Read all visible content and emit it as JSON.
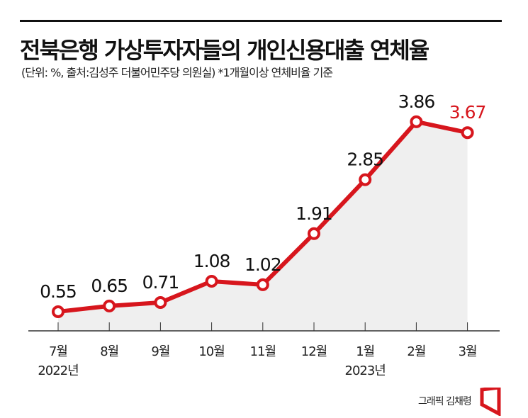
{
  "title": "전북은행 가상투자자들의 개인신용대출 연체율",
  "subtitle": "(단위: %, 출처:김성주 더불어민주당 의원실)  *1개월이상 연체비율 기준",
  "credit": "그래픽 김채령",
  "colors": {
    "line": "#d7161d",
    "highlight": "#d7161d",
    "area": "#efefef",
    "text": "#111111"
  },
  "chart_data": {
    "type": "line",
    "title": "전북은행 가상투자자들의 개인신용대출 연체율",
    "categories": [
      "7월",
      "8월",
      "9월",
      "10월",
      "11월",
      "12월",
      "1월",
      "2월",
      "3월"
    ],
    "year_labels": [
      {
        "index": 0,
        "label": "2022년"
      },
      {
        "index": 6,
        "label": "2023년"
      }
    ],
    "series": [
      {
        "values": [
          0.55,
          0.65,
          0.71,
          1.08,
          1.02,
          1.91,
          2.85,
          3.86,
          3.67
        ]
      }
    ],
    "data_labels": [
      "0.55",
      "0.65",
      "0.71",
      "1.08",
      "1.02",
      "1.91",
      "2.85",
      "3.86",
      "3.67"
    ],
    "highlight_index": 8,
    "grid": false,
    "legend": "none"
  }
}
